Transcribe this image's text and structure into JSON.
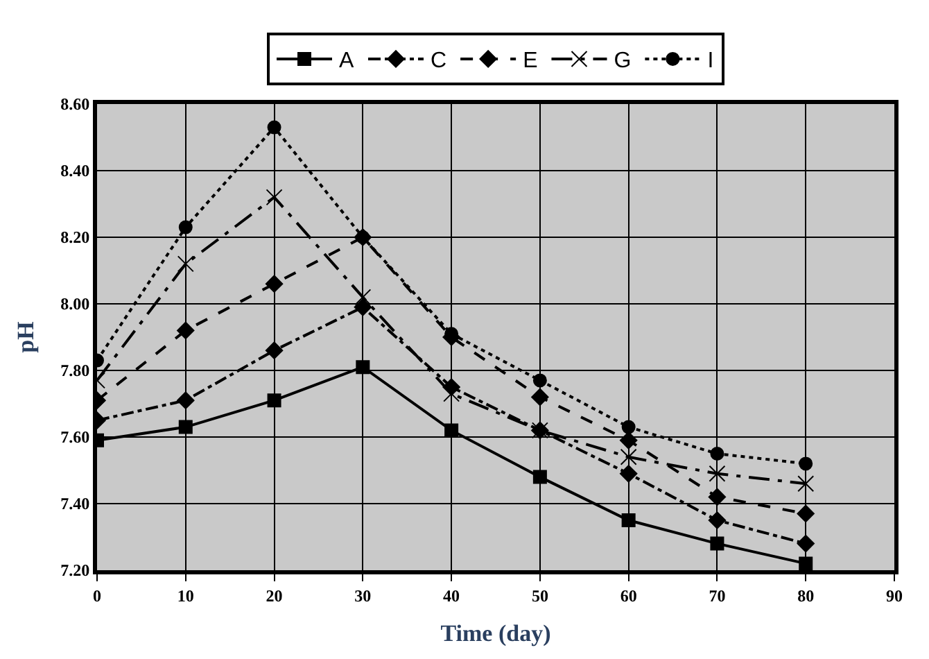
{
  "chart_data": {
    "type": "line",
    "xlabel": "Time (day)",
    "ylabel": "pH",
    "x": [
      0,
      10,
      20,
      30,
      40,
      50,
      60,
      70,
      80
    ],
    "xlim": [
      0,
      90
    ],
    "xticks": [
      0,
      10,
      20,
      30,
      40,
      50,
      60,
      70,
      80,
      90
    ],
    "ylim": [
      7.2,
      8.6
    ],
    "yticks": [
      {
        "value": 7.2,
        "label": "7.20"
      },
      {
        "value": 7.4,
        "label": "7.40"
      },
      {
        "value": 7.6,
        "label": "7.60"
      },
      {
        "value": 7.8,
        "label": "7.80"
      },
      {
        "value": 8.0,
        "label": "8.00"
      },
      {
        "value": 8.2,
        "label": "8.20"
      },
      {
        "value": 8.4,
        "label": "8.40"
      },
      {
        "value": 8.6,
        "label": "8.60"
      }
    ],
    "grid": true,
    "legend": "top",
    "series": [
      {
        "name": "A",
        "color": "#000000",
        "marker": "square",
        "line_style": "solid",
        "values": [
          7.59,
          7.63,
          7.71,
          7.81,
          7.62,
          7.48,
          7.35,
          7.28,
          7.22
        ]
      },
      {
        "name": "C",
        "color": "#000000",
        "marker": "diamond",
        "line_style": "dashdot",
        "values": [
          7.65,
          7.71,
          7.86,
          7.99,
          7.75,
          7.62,
          7.49,
          7.35,
          7.28
        ]
      },
      {
        "name": "E",
        "color": "#000000",
        "marker": "diamond",
        "line_style": "dashed",
        "values": [
          7.71,
          7.92,
          8.06,
          8.2,
          7.9,
          7.72,
          7.59,
          7.42,
          7.37
        ]
      },
      {
        "name": "G",
        "color": "#000000",
        "marker": "cross",
        "line_style": "longdashdot",
        "values": [
          7.77,
          8.12,
          8.32,
          8.02,
          7.73,
          7.62,
          7.54,
          7.49,
          7.46
        ]
      },
      {
        "name": "I",
        "color": "#000000",
        "marker": "circle",
        "line_style": "dotted",
        "values": [
          7.83,
          8.23,
          8.53,
          8.2,
          7.91,
          7.77,
          7.63,
          7.55,
          7.52
        ]
      }
    ]
  }
}
